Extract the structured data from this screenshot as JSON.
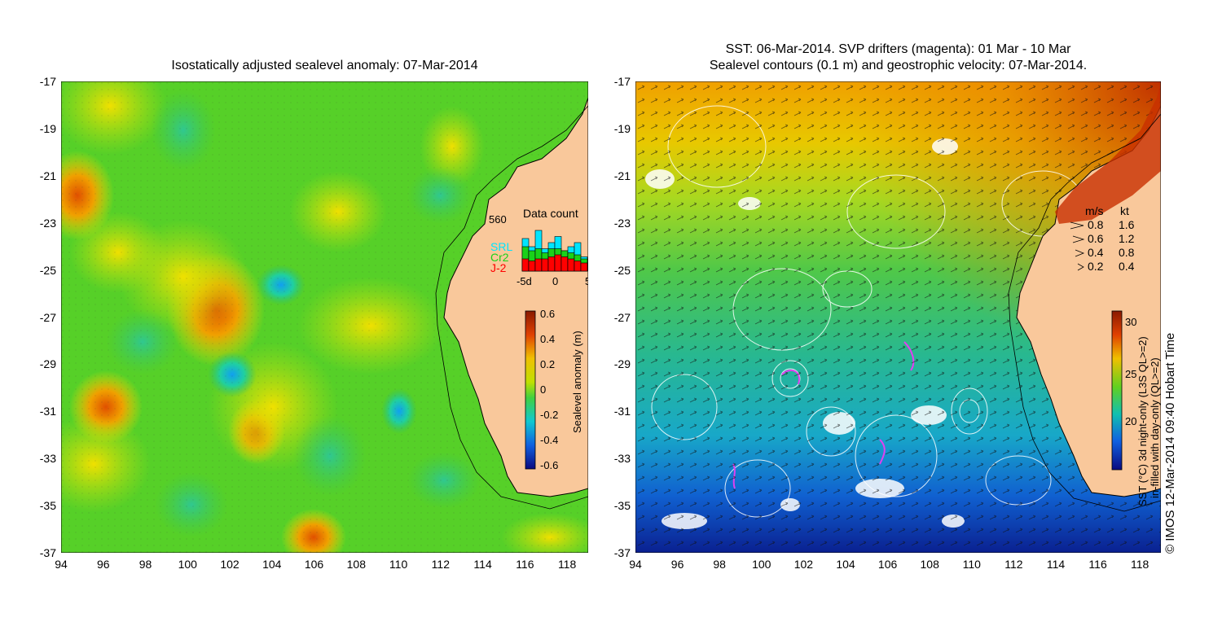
{
  "left_panel": {
    "title": "Isostatically adjusted sealevel anomaly: 07-Mar-2014",
    "y_ticks": [
      "-17",
      "-19",
      "-21",
      "-23",
      "-25",
      "-27",
      "-29",
      "-31",
      "-33",
      "-35",
      "-37"
    ],
    "x_ticks": [
      "94",
      "96",
      "98",
      "100",
      "102",
      "104",
      "106",
      "108",
      "110",
      "112",
      "114",
      "116",
      "118"
    ],
    "colorbar": {
      "label": "Sealevel anomaly (m)",
      "ticks": [
        "0.6",
        "0.4",
        "0.2",
        "0",
        "-0.2",
        "-0.4",
        "-0.6"
      ]
    },
    "data_count": {
      "max_label": "560",
      "title": "Data count",
      "legend": [
        {
          "name": "SRL",
          "color": "#00e5ff"
        },
        {
          "name": "Cr2",
          "color": "#19d219"
        },
        {
          "name": "J-2",
          "color": "#ff0000"
        }
      ],
      "x_ticks": [
        "-5d",
        "0",
        "5"
      ],
      "bars": [
        {
          "srl": 0.8,
          "cr2": 0.6,
          "j2": 0.3
        },
        {
          "srl": 0.6,
          "cr2": 0.5,
          "j2": 0.25
        },
        {
          "srl": 1.0,
          "cr2": 0.55,
          "j2": 0.3
        },
        {
          "srl": 0.55,
          "cr2": 0.45,
          "j2": 0.3
        },
        {
          "srl": 0.7,
          "cr2": 0.55,
          "j2": 0.35
        },
        {
          "srl": 0.85,
          "cr2": 0.55,
          "j2": 0.4
        },
        {
          "srl": 0.5,
          "cr2": 0.5,
          "j2": 0.35
        },
        {
          "srl": 0.6,
          "cr2": 0.45,
          "j2": 0.3
        },
        {
          "srl": 0.7,
          "cr2": 0.4,
          "j2": 0.25
        },
        {
          "srl": 0.35,
          "cr2": 0.3,
          "j2": 0.2
        }
      ]
    }
  },
  "right_panel": {
    "title_line1": "SST: 06-Mar-2014. SVP drifters (magenta): 01 Mar - 10 Mar",
    "title_line2": "Sealevel contours (0.1 m) and geostrophic velocity: 07-Mar-2014.",
    "y_ticks": [
      "-17",
      "-19",
      "-21",
      "-23",
      "-25",
      "-27",
      "-29",
      "-31",
      "-33",
      "-35",
      "-37"
    ],
    "x_ticks": [
      "94",
      "96",
      "98",
      "100",
      "102",
      "104",
      "106",
      "108",
      "110",
      "112",
      "114",
      "116",
      "118"
    ],
    "velocity_legend": {
      "header_ms": "m/s",
      "header_kt": "kt",
      "rows": [
        {
          "ms": "0.8",
          "kt": "1.6"
        },
        {
          "ms": "0.6",
          "kt": "1.2"
        },
        {
          "ms": "0.4",
          "kt": "0.8"
        },
        {
          "ms": "0.2",
          "kt": "0.4"
        }
      ]
    },
    "colorbar": {
      "label_line1": "SST (°C) 3d night-only (L3S QL>=2)",
      "label_line2": "in-filled with day-only (QL>=2)",
      "ticks": [
        "30",
        "25",
        "20"
      ]
    }
  },
  "credit": "© IMOS 12-Mar-2014 09:40 Hobart Time",
  "colors": {
    "land": "#f9c89b",
    "sla_green": "#4ed21e",
    "sst_orange": "#f2a000"
  }
}
